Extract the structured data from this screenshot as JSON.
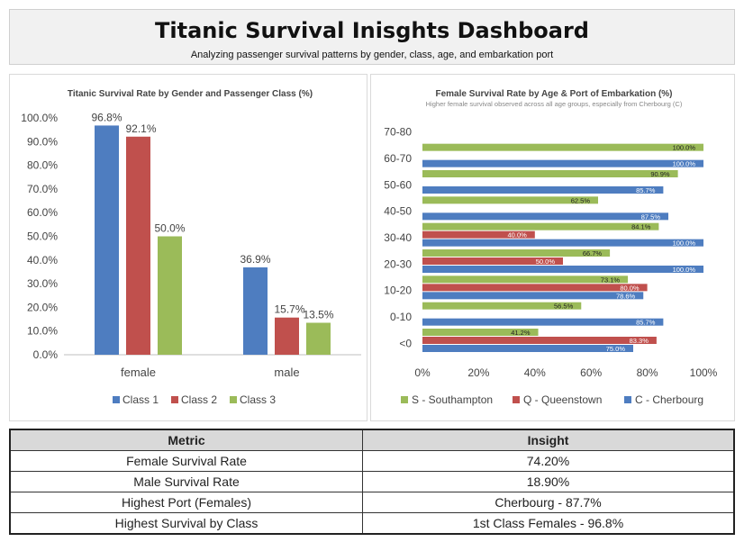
{
  "header": {
    "title": "Titanic Survival Inisghts Dashboard",
    "subtitle": "Analyzing passenger survival patterns by gender, class, age, and embarkation port"
  },
  "chart_data": [
    {
      "type": "bar",
      "title": "Titanic Survival Rate by Gender and Passenger Class (%)",
      "categories": [
        "female",
        "male"
      ],
      "series": [
        {
          "name": "Class 1",
          "color": "#4e7dc0",
          "values": [
            96.8,
            36.9
          ]
        },
        {
          "name": "Class 2",
          "color": "#c0504d",
          "values": [
            92.1,
            15.7
          ]
        },
        {
          "name": "Class 3",
          "color": "#9bbb59",
          "values": [
            50.0,
            13.5
          ]
        }
      ],
      "data_labels": [
        [
          "96.8%",
          "92.1%",
          "50.0%"
        ],
        [
          "36.9%",
          "15.7%",
          "13.5%"
        ]
      ],
      "ylim": [
        0,
        100
      ],
      "yticks": [
        "0.0%",
        "10.0%",
        "20.0%",
        "30.0%",
        "40.0%",
        "50.0%",
        "60.0%",
        "70.0%",
        "80.0%",
        "90.0%",
        "100.0%"
      ],
      "grid": false,
      "legend": "bottom"
    },
    {
      "type": "bar",
      "orientation": "horizontal",
      "title": "Female Survival Rate by Age & Port of Embarkation (%)",
      "subtitle": "Higher female survival observed across all age groups, especially from Cherbourg (C)",
      "categories": [
        "<0",
        "0-10",
        "10-20",
        "20-30",
        "30-40",
        "40-50",
        "50-60",
        "60-70",
        "70-80"
      ],
      "series": [
        {
          "name": "S - Southampton",
          "color": "#9bbb59",
          "values": [
            41.2,
            56.5,
            73.1,
            66.7,
            84.1,
            62.5,
            90.9,
            100.0,
            null
          ]
        },
        {
          "name": "Q - Queenstown",
          "color": "#c0504d",
          "values": [
            83.3,
            null,
            80.0,
            50.0,
            40.0,
            null,
            null,
            null,
            null
          ]
        },
        {
          "name": "C - Cherbourg",
          "color": "#4e7dc0",
          "values": [
            75.0,
            85.7,
            78.6,
            100.0,
            100.0,
            87.5,
            85.7,
            100.0,
            null
          ]
        }
      ],
      "xlim": [
        0,
        100
      ],
      "xticks": [
        "0%",
        "20%",
        "40%",
        "60%",
        "80%",
        "100%"
      ],
      "grid": false,
      "legend": "bottom"
    }
  ],
  "table": {
    "headers": [
      "Metric",
      "Insight"
    ],
    "rows": [
      [
        "Female Survival Rate",
        "74.20%"
      ],
      [
        "Male Survival Rate",
        "18.90%"
      ],
      [
        "Highest Port (Females)",
        "Cherbourg - 87.7%"
      ],
      [
        "Highest Survival by Class",
        "1st Class Females - 96.8%"
      ]
    ]
  }
}
